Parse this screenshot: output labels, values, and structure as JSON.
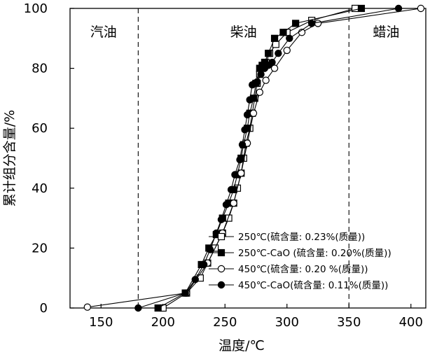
{
  "chart_data": {
    "type": "line",
    "xlabel": "温度/℃",
    "ylabel": "累计组分含量/%",
    "xlim": [
      125,
      412
    ],
    "ylim": [
      0,
      100
    ],
    "x_ticks": [
      150,
      200,
      250,
      300,
      350,
      400
    ],
    "y_ticks": [
      0,
      20,
      40,
      60,
      80,
      100
    ],
    "dividers": [
      180,
      350
    ],
    "regions": [
      {
        "label": "汽油",
        "x": 152
      },
      {
        "label": "柴油",
        "x": 265
      },
      {
        "label": "蜡油",
        "x": 380
      }
    ],
    "legend_position": "bottom-right",
    "series": [
      {
        "name": "250℃(硫含量: 0.23%(质量))",
        "marker": "square-open",
        "x": [
          200,
          219,
          230,
          236,
          242,
          248,
          253,
          257,
          260,
          263,
          265,
          267,
          270,
          272,
          274,
          276,
          278,
          280,
          283,
          286,
          291,
          300,
          320,
          355
        ],
        "y": [
          0,
          5,
          10,
          15,
          20,
          25,
          30,
          35,
          40,
          45,
          50,
          55,
          60,
          65,
          70,
          75,
          78,
          80,
          82,
          85,
          88,
          92,
          96,
          100
        ]
      },
      {
        "name": "250℃-CaO (硫含量: 0.20%(质量))",
        "marker": "square-filled",
        "x": [
          196,
          218,
          231,
          237,
          243,
          248,
          253,
          257,
          260,
          263,
          265,
          268,
          270,
          273,
          275,
          278,
          280,
          282,
          285,
          290,
          297,
          307,
          360
        ],
        "y": [
          0,
          5,
          14.5,
          20,
          24.5,
          30,
          35,
          39.5,
          44.5,
          50,
          54.5,
          60,
          65,
          70,
          75,
          80,
          81,
          82,
          85,
          90,
          92,
          95,
          100
        ]
      },
      {
        "name": "450℃(硫含量: 0.20 %(质量))",
        "marker": "circle-open",
        "x": [
          139,
          219,
          236,
          248,
          257,
          263,
          268,
          273,
          278,
          283,
          290,
          300,
          312,
          325,
          408
        ],
        "y": [
          0.3,
          5,
          15,
          25,
          35,
          45,
          55,
          65,
          72,
          76,
          80,
          86,
          92,
          95,
          100
        ]
      },
      {
        "name": "450℃-CaO(硫含量: 0.11%(质量))",
        "marker": "circle-filled",
        "x": [
          180,
          218,
          226,
          233,
          238,
          243,
          247,
          251,
          255,
          258,
          262,
          264,
          266,
          268,
          270,
          272,
          274,
          276,
          279,
          282,
          285,
          288,
          293,
          302,
          320,
          390
        ],
        "y": [
          0,
          5,
          9.5,
          14.5,
          19.5,
          25,
          29.5,
          34.5,
          39.5,
          44.5,
          49.5,
          54.5,
          59.5,
          64.5,
          69.5,
          74.5,
          75,
          75.5,
          78,
          80,
          81,
          82,
          85,
          90,
          95,
          100
        ]
      }
    ]
  }
}
